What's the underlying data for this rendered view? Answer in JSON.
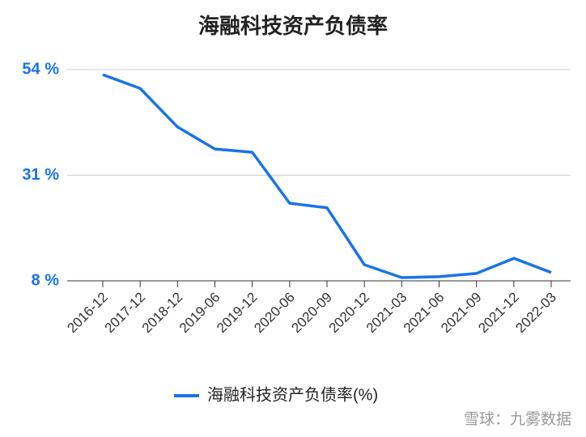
{
  "chart_data": {
    "type": "line",
    "title": "海融科技资产负债率",
    "categories": [
      "2016-12",
      "2017-12",
      "2018-12",
      "2019-06",
      "2019-12",
      "2020-06",
      "2020-09",
      "2020-12",
      "2021-03",
      "2021-06",
      "2021-09",
      "2021-12",
      "2022-03"
    ],
    "series": [
      {
        "name": "海融科技资产负债率(%)",
        "color": "#1a73e8",
        "values": [
          52.9,
          49.9,
          41.5,
          36.7,
          36.0,
          24.9,
          23.9,
          11.5,
          8.7,
          8.9,
          9.6,
          12.9,
          9.8
        ]
      }
    ],
    "ylim": [
      8,
      54
    ],
    "yticks": [
      {
        "value": 8,
        "label": "8 %"
      },
      {
        "value": 31,
        "label": "31 %"
      },
      {
        "value": 54,
        "label": "54 %"
      }
    ],
    "grid": true,
    "legend": "bottom",
    "watermark": "雪球：九雾数据"
  }
}
